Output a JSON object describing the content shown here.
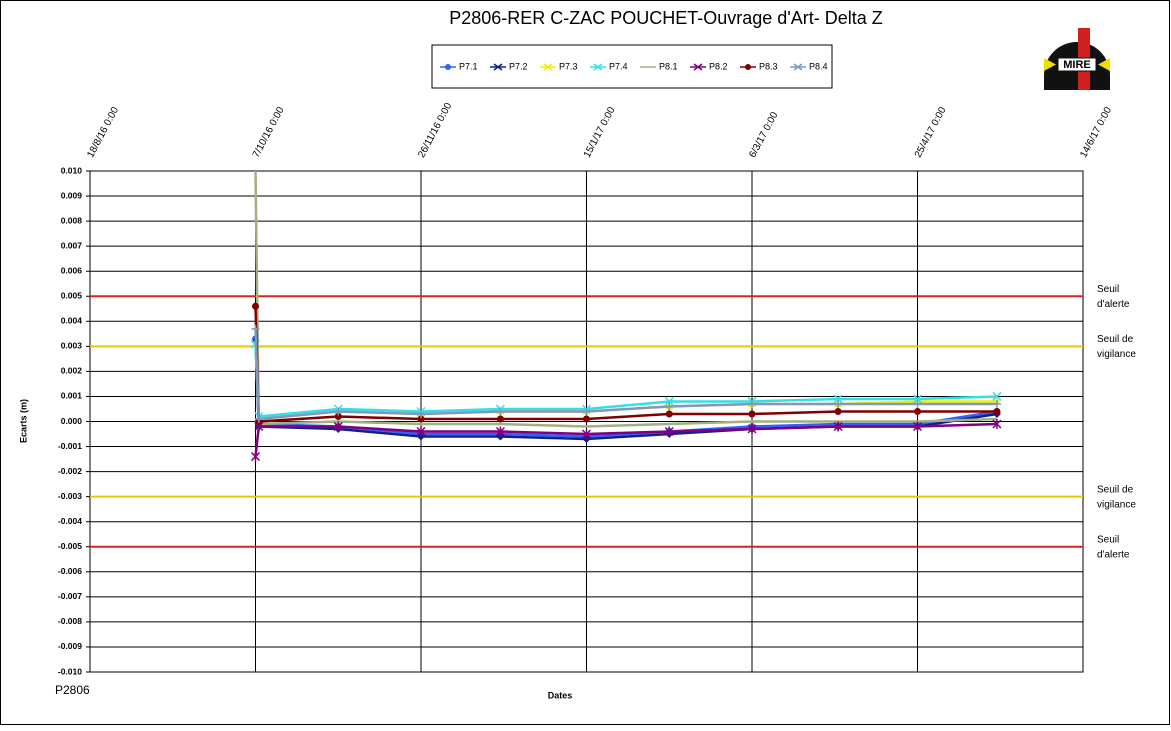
{
  "chart_data": {
    "type": "line",
    "title": "P2806-RER  C-ZAC  POUCHET-Ouvrage  d'Art- Delta Z",
    "x_label": "Dates",
    "y_label": "Ecarts (m)",
    "footnote": "P2806",
    "logo_text": "MIRE",
    "grid": true,
    "legend_position": "top",
    "xlim": [
      "18/8/16 0:00",
      "14/6/17 0:00"
    ],
    "xticks": [
      "18/8/16 0:00",
      "7/10/16 0:00",
      "26/11/16 0:00",
      "15/1/17 0:00",
      "6/3/17 0:00",
      "25/4/17 0:00",
      "14/6/17 0:00"
    ],
    "ylim": [
      -0.01,
      0.01
    ],
    "yticks": [
      {
        "value": -0.01,
        "label": "-0.010"
      },
      {
        "value": -0.009,
        "label": "-0.009"
      },
      {
        "value": -0.008,
        "label": "-0.008"
      },
      {
        "value": -0.007,
        "label": "-0.007"
      },
      {
        "value": -0.006,
        "label": "-0.006"
      },
      {
        "value": -0.005,
        "label": "-0.005"
      },
      {
        "value": -0.004,
        "label": "-0.004"
      },
      {
        "value": -0.003,
        "label": "-0.003"
      },
      {
        "value": -0.002,
        "label": "-0.002"
      },
      {
        "value": -0.001,
        "label": "-0.001"
      },
      {
        "value": 0,
        "label": "0.000"
      },
      {
        "value": 0.001,
        "label": "0.001"
      },
      {
        "value": 0.002,
        "label": "0.002"
      },
      {
        "value": 0.003,
        "label": "0.003"
      },
      {
        "value": 0.004,
        "label": "0.004"
      },
      {
        "value": 0.005,
        "label": "0.005"
      },
      {
        "value": 0.006,
        "label": "0.006"
      },
      {
        "value": 0.007,
        "label": "0.007"
      },
      {
        "value": 0.008,
        "label": "0.008"
      },
      {
        "value": 0.009,
        "label": "0.009"
      },
      {
        "value": 0.01,
        "label": "0.010"
      }
    ],
    "thresholds": [
      {
        "value": 0.005,
        "label": [
          "Seuil",
          "d'alerte"
        ],
        "color": "#e02020"
      },
      {
        "value": 0.003,
        "label": [
          "Seuil de",
          "vigilance"
        ],
        "color": "#e8c800"
      },
      {
        "value": -0.003,
        "label": [
          "Seuil de",
          "vigilance"
        ],
        "color": "#e8c800"
      },
      {
        "value": -0.005,
        "label": [
          "Seuil",
          "d'alerte"
        ],
        "color": "#e02020"
      }
    ],
    "x": [
      "7/10/16 0:00",
      "8/10/16 0:00",
      "1/11/16 0:00",
      "26/11/16 0:00",
      "20/12/16 0:00",
      "15/1/17 0:00",
      "9/2/17 0:00",
      "6/3/17 0:00",
      "1/4/17 0:00",
      "25/4/17 0:00",
      "19/5/17 0:00"
    ],
    "series": [
      {
        "name": "P7.1",
        "color": "#3060ff",
        "marker": "circle",
        "values": [
          0.0033,
          -0.0001,
          -0.0002,
          -0.0005,
          -0.0005,
          -0.0006,
          -0.0004,
          -0.0002,
          -0.0001,
          -0.0001,
          0.0004
        ]
      },
      {
        "name": "P7.2",
        "color": "#10208a",
        "marker": "diamond",
        "values": [
          0.0032,
          -0.0002,
          -0.0003,
          -0.0006,
          -0.0006,
          -0.0007,
          -0.0005,
          -0.0003,
          -0.0002,
          -0.0002,
          0.0003
        ]
      },
      {
        "name": "P7.3",
        "color": "#f0f000",
        "marker": "triangle",
        "values": [
          0.0031,
          0.0001,
          0.0004,
          0.0003,
          0.0004,
          0.0004,
          0.0006,
          0.0007,
          0.0007,
          0.0008,
          0.0008
        ]
      },
      {
        "name": "P7.4",
        "color": "#30e0e8",
        "marker": "x",
        "values": [
          0.0031,
          0.0002,
          0.0005,
          0.0004,
          0.0005,
          0.0005,
          0.0008,
          0.0008,
          0.0009,
          0.0009,
          0.001
        ]
      },
      {
        "name": "P8.1",
        "color": "#a0b080",
        "marker": "none",
        "values": [
          0.01,
          -0.0001,
          0,
          -0.0001,
          -0.0001,
          -0.0002,
          -0.0001,
          0,
          0,
          0,
          0.0001
        ]
      },
      {
        "name": "P8.2",
        "color": "#800080",
        "marker": "star",
        "values": [
          -0.0014,
          -0.0002,
          -0.0002,
          -0.0004,
          -0.0004,
          -0.0005,
          -0.0004,
          -0.0003,
          -0.0002,
          -0.0002,
          -0.0001
        ]
      },
      {
        "name": "P8.3",
        "color": "#800000",
        "marker": "circle",
        "values": [
          0.0046,
          0,
          0.0002,
          0.0001,
          0.0001,
          0.0001,
          0.0003,
          0.0003,
          0.0004,
          0.0004,
          0.0004
        ]
      },
      {
        "name": "P8.4",
        "color": "#8098c0",
        "marker": "plus",
        "values": [
          0.0037,
          0.0001,
          0.0004,
          0.0003,
          0.0004,
          0.0004,
          0.0006,
          0.0007,
          0.0007,
          0.0007,
          0.0007
        ]
      }
    ]
  }
}
